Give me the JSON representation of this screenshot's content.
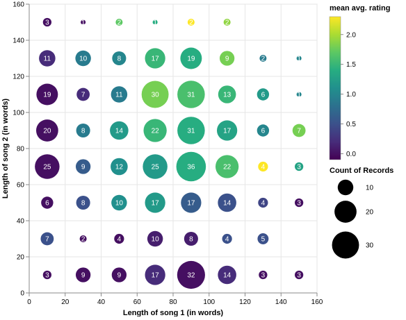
{
  "chart_data": {
    "type": "scatter",
    "xlabel": "Length of song 1 (in words)",
    "ylabel": "Length of song 2 (in words)",
    "xlim": [
      0,
      160
    ],
    "ylim": [
      0,
      160
    ],
    "xticks": [
      0,
      20,
      40,
      60,
      80,
      100,
      120,
      140,
      160
    ],
    "yticks": [
      0,
      20,
      40,
      60,
      80,
      100,
      120,
      140,
      160
    ],
    "grid": true,
    "color_legend": {
      "title": "mean avg. rating",
      "range": [
        -0.1,
        2.3
      ],
      "ticks": [
        0.0,
        0.5,
        1.0,
        1.5,
        2.0
      ],
      "tick_labels": [
        "0.0",
        "0.5",
        "1.0",
        "1.5",
        "2.0"
      ],
      "colormap": "viridis",
      "placement": "top-right"
    },
    "size_legend": {
      "title": "Count of Records",
      "values": [
        10,
        20,
        30
      ],
      "labels": [
        "10",
        "20",
        "30"
      ],
      "placement": "right"
    },
    "points": [
      {
        "x": 10,
        "y": 150,
        "count": 3,
        "rating": 0.0
      },
      {
        "x": 30,
        "y": 150,
        "count": 1,
        "rating": 0.0
      },
      {
        "x": 50,
        "y": 150,
        "count": 2,
        "rating": 1.7
      },
      {
        "x": 70,
        "y": 150,
        "count": 1,
        "rating": 1.4
      },
      {
        "x": 90,
        "y": 150,
        "count": 2,
        "rating": 2.3
      },
      {
        "x": 110,
        "y": 150,
        "count": 2,
        "rating": 1.9
      },
      {
        "x": 10,
        "y": 130,
        "count": 11,
        "rating": 0.2
      },
      {
        "x": 30,
        "y": 130,
        "count": 10,
        "rating": 0.9
      },
      {
        "x": 50,
        "y": 130,
        "count": 8,
        "rating": 1.0
      },
      {
        "x": 70,
        "y": 130,
        "count": 17,
        "rating": 1.5
      },
      {
        "x": 90,
        "y": 130,
        "count": 19,
        "rating": 1.4
      },
      {
        "x": 110,
        "y": 130,
        "count": 9,
        "rating": 1.8
      },
      {
        "x": 130,
        "y": 130,
        "count": 2,
        "rating": 0.9
      },
      {
        "x": 150,
        "y": 130,
        "count": 1,
        "rating": 1.0
      },
      {
        "x": 10,
        "y": 110,
        "count": 19,
        "rating": 0.0
      },
      {
        "x": 30,
        "y": 110,
        "count": 7,
        "rating": 0.2
      },
      {
        "x": 50,
        "y": 110,
        "count": 11,
        "rating": 0.9
      },
      {
        "x": 70,
        "y": 110,
        "count": 30,
        "rating": 1.8
      },
      {
        "x": 90,
        "y": 110,
        "count": 31,
        "rating": 1.6
      },
      {
        "x": 110,
        "y": 110,
        "count": 13,
        "rating": 1.5
      },
      {
        "x": 130,
        "y": 110,
        "count": 6,
        "rating": 1.2
      },
      {
        "x": 150,
        "y": 110,
        "count": 1,
        "rating": 1.0
      },
      {
        "x": 10,
        "y": 90,
        "count": 20,
        "rating": 0.0
      },
      {
        "x": 30,
        "y": 90,
        "count": 8,
        "rating": 0.9
      },
      {
        "x": 50,
        "y": 90,
        "count": 14,
        "rating": 1.2
      },
      {
        "x": 70,
        "y": 90,
        "count": 22,
        "rating": 1.5
      },
      {
        "x": 90,
        "y": 90,
        "count": 31,
        "rating": 1.4
      },
      {
        "x": 110,
        "y": 90,
        "count": 17,
        "rating": 1.3
      },
      {
        "x": 130,
        "y": 90,
        "count": 6,
        "rating": 1.0
      },
      {
        "x": 150,
        "y": 90,
        "count": 7,
        "rating": 1.8
      },
      {
        "x": 10,
        "y": 70,
        "count": 25,
        "rating": 0.0
      },
      {
        "x": 30,
        "y": 70,
        "count": 9,
        "rating": 0.6
      },
      {
        "x": 50,
        "y": 70,
        "count": 12,
        "rating": 1.1
      },
      {
        "x": 70,
        "y": 70,
        "count": 25,
        "rating": 1.2
      },
      {
        "x": 90,
        "y": 70,
        "count": 36,
        "rating": 1.4
      },
      {
        "x": 110,
        "y": 70,
        "count": 22,
        "rating": 1.6
      },
      {
        "x": 130,
        "y": 70,
        "count": 4,
        "rating": 2.3
      },
      {
        "x": 150,
        "y": 70,
        "count": 3,
        "rating": 1.3
      },
      {
        "x": 10,
        "y": 50,
        "count": 6,
        "rating": 0.0
      },
      {
        "x": 30,
        "y": 50,
        "count": 8,
        "rating": 0.5
      },
      {
        "x": 50,
        "y": 50,
        "count": 10,
        "rating": 1.1
      },
      {
        "x": 70,
        "y": 50,
        "count": 17,
        "rating": 1.2
      },
      {
        "x": 90,
        "y": 50,
        "count": 17,
        "rating": 0.6
      },
      {
        "x": 110,
        "y": 50,
        "count": 14,
        "rating": 0.5
      },
      {
        "x": 130,
        "y": 50,
        "count": 4,
        "rating": 0.4
      },
      {
        "x": 150,
        "y": 50,
        "count": 3,
        "rating": 0.0
      },
      {
        "x": 10,
        "y": 30,
        "count": 7,
        "rating": 0.5
      },
      {
        "x": 30,
        "y": 30,
        "count": 2,
        "rating": 0.0
      },
      {
        "x": 50,
        "y": 30,
        "count": 4,
        "rating": 0.0
      },
      {
        "x": 70,
        "y": 30,
        "count": 10,
        "rating": 0.1
      },
      {
        "x": 90,
        "y": 30,
        "count": 8,
        "rating": 0.1
      },
      {
        "x": 110,
        "y": 30,
        "count": 4,
        "rating": 0.5
      },
      {
        "x": 130,
        "y": 30,
        "count": 5,
        "rating": 0.5
      },
      {
        "x": 10,
        "y": 10,
        "count": 3,
        "rating": 0.0
      },
      {
        "x": 30,
        "y": 10,
        "count": 9,
        "rating": 0.0
      },
      {
        "x": 50,
        "y": 10,
        "count": 9,
        "rating": 0.0
      },
      {
        "x": 70,
        "y": 10,
        "count": 17,
        "rating": 0.2
      },
      {
        "x": 90,
        "y": 10,
        "count": 32,
        "rating": 0.0
      },
      {
        "x": 110,
        "y": 10,
        "count": 14,
        "rating": 0.2
      },
      {
        "x": 130,
        "y": 10,
        "count": 3,
        "rating": 0.0
      },
      {
        "x": 150,
        "y": 10,
        "count": 3,
        "rating": 0.0
      }
    ]
  }
}
